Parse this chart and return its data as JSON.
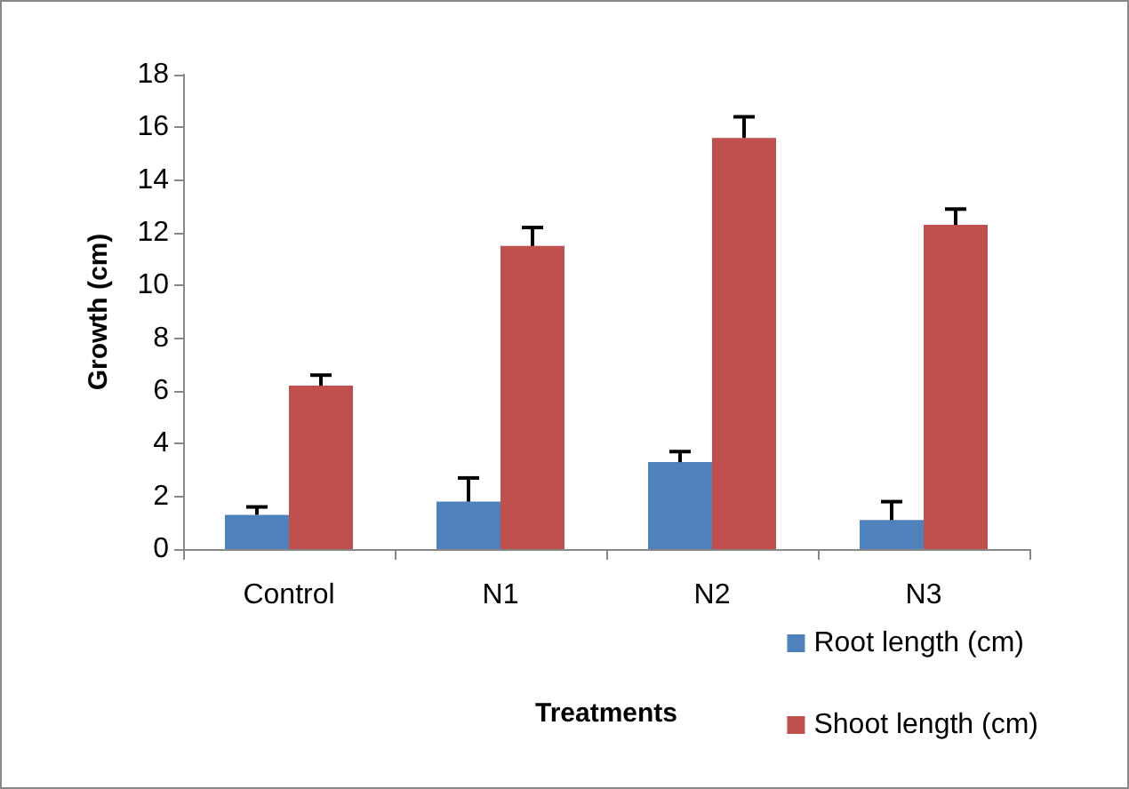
{
  "chart_data": {
    "type": "bar",
    "xlabel": "Treatments",
    "ylabel": "Growth (cm)",
    "categories": [
      "Control",
      "N1",
      "N2",
      "N3"
    ],
    "series": [
      {
        "name": "Root length (cm)",
        "color": "#4f81bd",
        "values": [
          1.3,
          1.8,
          3.3,
          1.1
        ],
        "errors": [
          [
            1.3,
            1.6
          ],
          [
            1.8,
            2.7
          ],
          [
            3.3,
            3.7
          ],
          [
            1.1,
            1.8
          ]
        ]
      },
      {
        "name": "Shoot length (cm)",
        "color": "#c0504d",
        "values": [
          6.2,
          11.5,
          15.6,
          12.3
        ],
        "errors": [
          [
            6.2,
            6.6
          ],
          [
            11.5,
            12.2
          ],
          [
            15.6,
            16.4
          ],
          [
            12.3,
            12.9
          ]
        ]
      }
    ],
    "ylim": [
      0,
      18
    ],
    "yticks": [
      0,
      2,
      4,
      6,
      8,
      10,
      12,
      14,
      16,
      18
    ],
    "grid": false,
    "legend": "bottom right"
  }
}
